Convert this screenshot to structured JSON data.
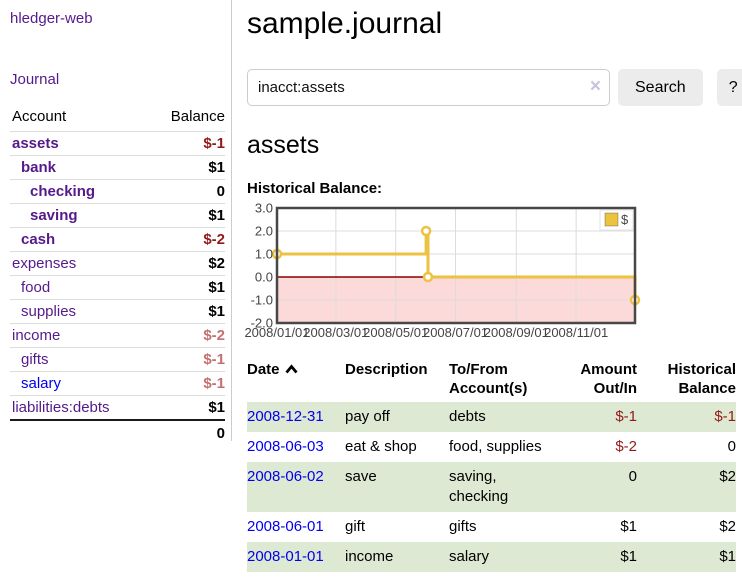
{
  "app": {
    "brand": "hledger-web"
  },
  "sidebar": {
    "journal_label": "Journal",
    "account_header": "Account",
    "balance_header": "Balance",
    "total": "0",
    "accounts": [
      {
        "name": "assets",
        "balance": "$-1",
        "indent": 1,
        "bold": true
      },
      {
        "name": "bank",
        "balance": "$1",
        "indent": 2,
        "bold": true
      },
      {
        "name": "checking",
        "balance": "0",
        "indent": 3,
        "bold": true
      },
      {
        "name": "saving",
        "balance": "$1",
        "indent": 3,
        "bold": true
      },
      {
        "name": "cash",
        "balance": "$-2",
        "indent": 2,
        "bold": true
      },
      {
        "name": "expenses",
        "balance": "$2",
        "indent": 1,
        "bold": false
      },
      {
        "name": "food",
        "balance": "$1",
        "indent": 2,
        "bold": false
      },
      {
        "name": "supplies",
        "balance": "$1",
        "indent": 2,
        "bold": false
      },
      {
        "name": "income",
        "balance": "$-2",
        "indent": 1,
        "bold": false
      },
      {
        "name": "gifts",
        "balance": "$-1",
        "indent": 2,
        "bold": false
      },
      {
        "name": "salary",
        "balance": "$-1",
        "indent": 2,
        "bold": false,
        "unvisited": true
      },
      {
        "name": "liabilities:debts",
        "balance": "$1",
        "indent": 1,
        "bold": false
      }
    ]
  },
  "header": {
    "title": "sample.journal"
  },
  "search": {
    "value": "inacct:assets",
    "clear_icon": "×",
    "button_label": "Search",
    "help_label": "?"
  },
  "register": {
    "heading": "assets",
    "chart_label": "Historical Balance:",
    "columns": {
      "date": "Date",
      "description": "Description",
      "tofrom": "To/From Account(s)",
      "amount": "Amount Out/In",
      "balance": "Historical Balance"
    },
    "sort": "date ascending",
    "rows": [
      {
        "date": "2008-12-31",
        "description": "pay off",
        "accounts": "debts",
        "amount": "$-1",
        "balance": "$-1"
      },
      {
        "date": "2008-06-03",
        "description": "eat & shop",
        "accounts": "food, supplies",
        "amount": "$-2",
        "balance": "0"
      },
      {
        "date": "2008-06-02",
        "description": "save",
        "accounts": "saving, checking",
        "amount": "0",
        "balance": "$2"
      },
      {
        "date": "2008-06-01",
        "description": "gift",
        "accounts": "gifts",
        "amount": "$1",
        "balance": "$2"
      },
      {
        "date": "2008-01-01",
        "description": "income",
        "accounts": "salary",
        "amount": "$1",
        "balance": "$1"
      }
    ]
  },
  "chart_data": {
    "type": "line",
    "title": "Historical Balance:",
    "x_range": [
      "2008-01-01",
      "2008-12-31"
    ],
    "ylim": [
      -2,
      3
    ],
    "y_ticks": [
      3,
      2,
      1,
      0,
      -1,
      -2
    ],
    "x_ticks": [
      "2008/01/01",
      "2008/03/01",
      "2008/05/01",
      "2008/07/01",
      "2008/09/01",
      "2008/11/01"
    ],
    "grid": true,
    "legend_position": "top-right",
    "series": [
      {
        "name": "$",
        "color": "#edc240",
        "step": true,
        "points": [
          [
            "2008-01-01",
            1
          ],
          [
            "2008-06-01",
            2
          ],
          [
            "2008-06-03",
            0
          ],
          [
            "2008-12-31",
            -1
          ]
        ]
      }
    ],
    "colors": {
      "grid": "#dcdcdc",
      "border": "#474747",
      "zero_line": "#8b0000",
      "negative_region": "#fcdada",
      "tick_text": "#444444"
    }
  }
}
